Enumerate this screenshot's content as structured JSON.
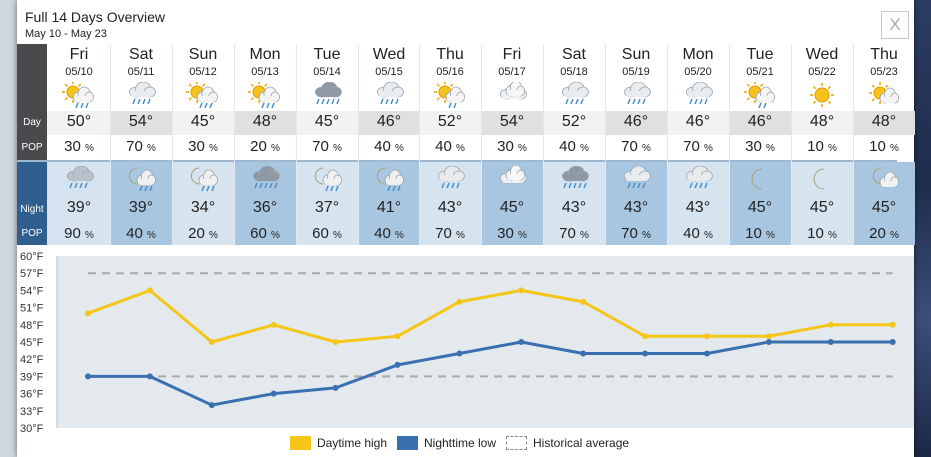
{
  "dialog": {
    "title": "Full 14 Days Overview",
    "date_range": "May 10 - May 23",
    "close_label": "X"
  },
  "row_labels": {
    "day": "Day",
    "pop": "POP",
    "night": "Night"
  },
  "pop_unit": "%",
  "days": [
    {
      "name": "Fri",
      "date": "05/10",
      "day_icon": "partly-sunny-rain-icon",
      "day_high": "50°",
      "day_pop": "30",
      "night_icon": "rain-cloud-icon",
      "night_low": "39°",
      "night_pop": "90"
    },
    {
      "name": "Sat",
      "date": "05/11",
      "day_icon": "cloud-rain-icon",
      "day_high": "54°",
      "day_pop": "70",
      "night_icon": "moon-cloud-rain-icon",
      "night_low": "39°",
      "night_pop": "40"
    },
    {
      "name": "Sun",
      "date": "05/12",
      "day_icon": "partly-sunny-rain-icon",
      "day_high": "45°",
      "day_pop": "30",
      "night_icon": "moon-cloud-rain-icon",
      "night_low": "34°",
      "night_pop": "20"
    },
    {
      "name": "Mon",
      "date": "05/13",
      "day_icon": "partly-sunny-rain-icon",
      "day_high": "48°",
      "day_pop": "20",
      "night_icon": "heavy-rain-cloud-icon",
      "night_low": "36°",
      "night_pop": "60"
    },
    {
      "name": "Tue",
      "date": "05/14",
      "day_icon": "heavy-rain-cloud-icon",
      "day_high": "45°",
      "day_pop": "70",
      "night_icon": "moon-cloud-rain-icon",
      "night_low": "37°",
      "night_pop": "60"
    },
    {
      "name": "Wed",
      "date": "05/15",
      "day_icon": "cloud-rain-icon",
      "day_high": "46°",
      "day_pop": "40",
      "night_icon": "moon-cloud-rain-icon",
      "night_low": "41°",
      "night_pop": "40"
    },
    {
      "name": "Thu",
      "date": "05/16",
      "day_icon": "sun-cloud-rain-icon",
      "day_high": "52°",
      "day_pop": "40",
      "night_icon": "cloud-rain-icon",
      "night_low": "43°",
      "night_pop": "70"
    },
    {
      "name": "Fri",
      "date": "05/17",
      "day_icon": "cloudy-icon",
      "day_high": "54°",
      "day_pop": "30",
      "night_icon": "cloudy-icon",
      "night_low": "45°",
      "night_pop": "30"
    },
    {
      "name": "Sat",
      "date": "05/18",
      "day_icon": "cloud-rain-icon",
      "day_high": "52°",
      "day_pop": "40",
      "night_icon": "heavy-rain-cloud-icon",
      "night_low": "43°",
      "night_pop": "70"
    },
    {
      "name": "Sun",
      "date": "05/19",
      "day_icon": "cloud-rain-icon",
      "day_high": "46°",
      "day_pop": "70",
      "night_icon": "cloud-rain-icon",
      "night_low": "43°",
      "night_pop": "70"
    },
    {
      "name": "Mon",
      "date": "05/20",
      "day_icon": "cloud-rain-icon",
      "day_high": "46°",
      "day_pop": "70",
      "night_icon": "cloud-rain-icon",
      "night_low": "43°",
      "night_pop": "40"
    },
    {
      "name": "Tue",
      "date": "05/21",
      "day_icon": "sun-cloud-rain-icon",
      "day_high": "46°",
      "day_pop": "30",
      "night_icon": "moon-icon",
      "night_low": "45°",
      "night_pop": "10"
    },
    {
      "name": "Wed",
      "date": "05/22",
      "day_icon": "sun-icon",
      "day_high": "48°",
      "day_pop": "10",
      "night_icon": "moon-icon",
      "night_low": "45°",
      "night_pop": "10"
    },
    {
      "name": "Thu",
      "date": "05/23",
      "day_icon": "partly-sunny-icon",
      "day_high": "48°",
      "day_pop": "10",
      "night_icon": "moon-cloud-icon",
      "night_low": "45°",
      "night_pop": "20"
    }
  ],
  "colors": {
    "daytime_high": "#f5c518",
    "nighttime_low": "#3a6fb0",
    "historical_average": "#aaaaaa",
    "chart_bg": "#e4e9ee",
    "night_band": "#d6e4f0",
    "highlight_day": "#e0e0e0",
    "highlight_night": "#a9c6e1"
  },
  "chart_data": {
    "type": "line",
    "x": [
      "05/10",
      "05/11",
      "05/12",
      "05/13",
      "05/14",
      "05/15",
      "05/16",
      "05/17",
      "05/18",
      "05/19",
      "05/20",
      "05/21",
      "05/22",
      "05/23"
    ],
    "series": [
      {
        "name": "Daytime high",
        "values": [
          50,
          54,
          45,
          48,
          45,
          46,
          52,
          54,
          52,
          46,
          46,
          46,
          48,
          48
        ]
      },
      {
        "name": "Nighttime low",
        "values": [
          39,
          39,
          34,
          36,
          37,
          41,
          43,
          45,
          43,
          43,
          43,
          45,
          45,
          45
        ]
      },
      {
        "name": "Historical average",
        "values_upper": [
          57,
          57,
          57,
          57,
          57,
          57,
          57,
          57,
          57,
          57,
          57,
          57,
          57,
          57
        ],
        "values_lower": [
          39,
          39,
          39,
          39,
          39,
          39,
          39,
          39,
          39,
          39,
          39,
          39,
          39,
          39
        ]
      }
    ],
    "y_ticks": [
      "60°F",
      "57°F",
      "54°F",
      "51°F",
      "48°F",
      "45°F",
      "42°F",
      "39°F",
      "36°F",
      "33°F",
      "30°F"
    ],
    "ylim": [
      30,
      60
    ],
    "grid": false,
    "legend": "bottom"
  }
}
